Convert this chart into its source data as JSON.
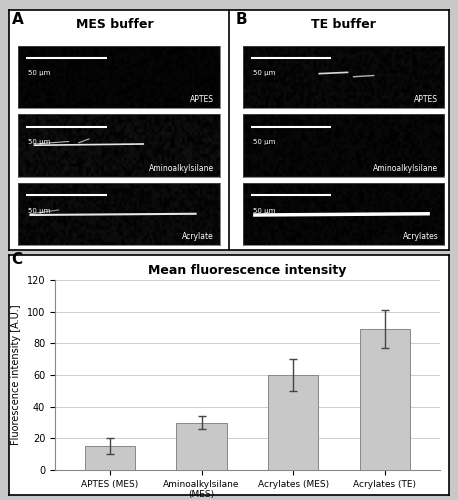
{
  "panel_A_label": "A",
  "panel_B_label": "B",
  "panel_C_label": "C",
  "panel_A_title": "MES buffer",
  "panel_B_title": "TE buffer",
  "chart_title": "Mean fluorescence intensity",
  "ylabel": "Fluorescence intensity [A.U.]",
  "categories": [
    "APTES (MES)",
    "Aminoalkylsilane\n(MES)",
    "Acrylates (MES)",
    "Acrylates (TE)"
  ],
  "values": [
    15,
    30,
    60,
    89
  ],
  "errors": [
    5,
    4,
    10,
    12
  ],
  "ylim": [
    0,
    120
  ],
  "yticks": [
    0,
    20,
    40,
    60,
    80,
    100,
    120
  ],
  "bar_color": "#c8c8c8",
  "bar_edge_color": "#888888",
  "error_color": "#444444",
  "chart_bg": "#ffffff",
  "fig_bg": "#c8c8c8",
  "panel_labels_A": [
    "APTES",
    "Aminoalkylsilane",
    "Acrylate"
  ],
  "panel_labels_B": [
    "APTES",
    "Aminoalkylsilane",
    "Acrylates"
  ],
  "scale_text": "50 μm",
  "img_brightness_A": [
    0.03,
    0.07,
    0.06
  ],
  "img_brightness_B": [
    0.05,
    0.04,
    0.04
  ]
}
